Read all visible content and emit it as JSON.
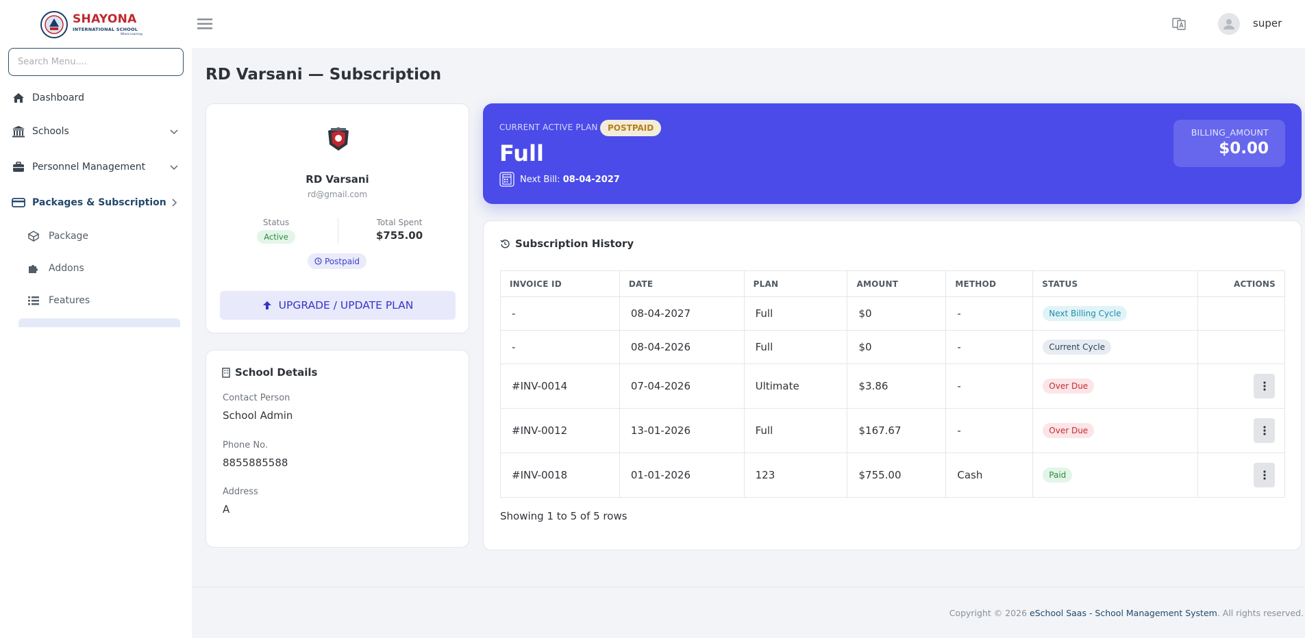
{
  "sidebar": {
    "logo": {
      "name": "SHAYONA",
      "subtitle": "INTERNATIONAL SCHOOL",
      "tagline": "Where Learning"
    },
    "search_placeholder": "Search Menu....",
    "items": [
      {
        "label": "Dashboard",
        "icon": "home-icon"
      },
      {
        "label": "Schools",
        "icon": "bank-icon"
      },
      {
        "label": "Personnel Management",
        "icon": "briefcase-icon"
      },
      {
        "label": "Packages & Subscription",
        "icon": "credit-card-icon"
      }
    ],
    "subitems": [
      {
        "label": "Package",
        "icon": "cube-icon"
      },
      {
        "label": "Addons",
        "icon": "puzzle-icon"
      },
      {
        "label": "Features",
        "icon": "list-icon"
      }
    ]
  },
  "topbar": {
    "username": "super"
  },
  "page": {
    "title": "RD Varsani — Subscription"
  },
  "profile": {
    "name": "RD Varsani",
    "email": "rd@gmail.com",
    "status_label": "Status",
    "status_value": "Active",
    "spent_label": "Total Spent",
    "spent_value": "$755.00",
    "plan_type": "Postpaid",
    "upgrade_label": "UPGRADE / UPDATE PLAN"
  },
  "school_details": {
    "title": "School Details",
    "contact_label": "Contact Person",
    "contact_value": "School Admin",
    "phone_label": "Phone No.",
    "phone_value": "8855885588",
    "address_label": "Address",
    "address_value": "A"
  },
  "plan": {
    "label": "CURRENT ACTIVE PLAN",
    "chip": "POSTPAID",
    "name": "Full",
    "next_bill_label": "Next Bill:",
    "next_bill_date": "08-04-2027",
    "billing_label": "BILLING_AMOUNT",
    "billing_value": "$0.00",
    "accent": "#4b4bea"
  },
  "history": {
    "title": "Subscription History",
    "columns": [
      "INVOICE ID",
      "DATE",
      "PLAN",
      "AMOUNT",
      "METHOD",
      "STATUS",
      "ACTIONS"
    ],
    "rows": [
      {
        "invoice": "-",
        "date": "08-04-2027",
        "plan": "Full",
        "amount": "$0",
        "method": "-",
        "status": "Next Billing Cycle"
      },
      {
        "invoice": "-",
        "date": "08-04-2026",
        "plan": "Full",
        "amount": "$0",
        "method": "-",
        "status": "Current Cycle"
      },
      {
        "invoice": "#INV-0014",
        "date": "07-04-2026",
        "plan": "Ultimate",
        "amount": "$3.86",
        "method": "-",
        "status": "Over Due"
      },
      {
        "invoice": "#INV-0012",
        "date": "13-01-2026",
        "plan": "Full",
        "amount": "$167.67",
        "method": "-",
        "status": "Over Due"
      },
      {
        "invoice": "#INV-0018",
        "date": "01-01-2026",
        "plan": "123",
        "amount": "$755.00",
        "method": "Cash",
        "status": "Paid"
      }
    ],
    "footer": "Showing 1 to 5 of 5 rows"
  },
  "footer": {
    "prefix": "Copyright © 2026",
    "link": "eSchool Saas - School Management System",
    "suffix": ". All rights reserved."
  }
}
